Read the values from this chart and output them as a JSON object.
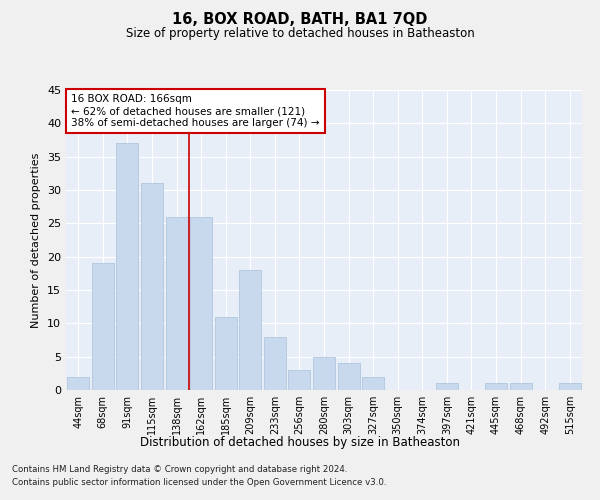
{
  "title": "16, BOX ROAD, BATH, BA1 7QD",
  "subtitle": "Size of property relative to detached houses in Batheaston",
  "xlabel": "Distribution of detached houses by size in Batheaston",
  "ylabel": "Number of detached properties",
  "categories": [
    "44sqm",
    "68sqm",
    "91sqm",
    "115sqm",
    "138sqm",
    "162sqm",
    "185sqm",
    "209sqm",
    "233sqm",
    "256sqm",
    "280sqm",
    "303sqm",
    "327sqm",
    "350sqm",
    "374sqm",
    "397sqm",
    "421sqm",
    "445sqm",
    "468sqm",
    "492sqm",
    "515sqm"
  ],
  "values": [
    2,
    19,
    37,
    31,
    26,
    26,
    11,
    18,
    8,
    3,
    5,
    4,
    2,
    0,
    0,
    1,
    0,
    1,
    1,
    0,
    1
  ],
  "bar_color": "#c8d9ee",
  "bar_edge_color": "#a8c0dc",
  "vline_color": "#cc0000",
  "annotation_text": "16 BOX ROAD: 166sqm\n← 62% of detached houses are smaller (121)\n38% of semi-detached houses are larger (74) →",
  "annotation_box_color": "#ffffff",
  "annotation_box_edge": "#cc0000",
  "plot_bg_color": "#e8eef8",
  "fig_bg_color": "#f0f0f0",
  "grid_color": "#ffffff",
  "footnote1": "Contains HM Land Registry data © Crown copyright and database right 2024.",
  "footnote2": "Contains public sector information licensed under the Open Government Licence v3.0.",
  "ylim": [
    0,
    45
  ],
  "yticks": [
    0,
    5,
    10,
    15,
    20,
    25,
    30,
    35,
    40,
    45
  ],
  "vline_position": 4.5
}
